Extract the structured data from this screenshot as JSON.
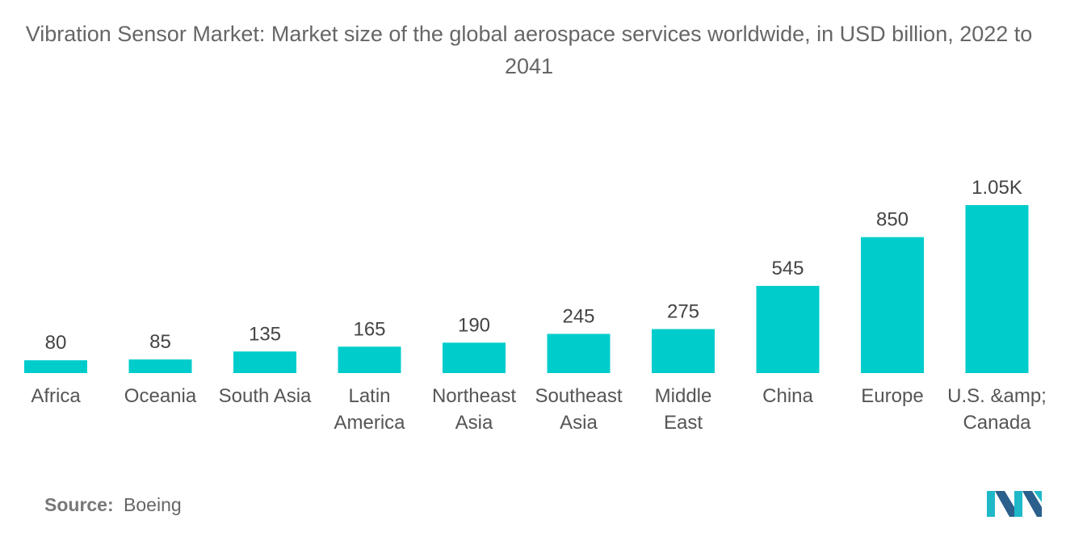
{
  "chart_data": {
    "type": "bar",
    "title": "Vibration Sensor Market: Market size of the global aerospace services worldwide, in USD billion, 2022 to 2041",
    "categories": [
      [
        "Africa"
      ],
      [
        "Oceania"
      ],
      [
        "South Asia"
      ],
      [
        "Latin",
        "America"
      ],
      [
        "Northeast",
        "Asia"
      ],
      [
        "Southeast",
        "Asia"
      ],
      [
        "Middle",
        "East"
      ],
      [
        "China"
      ],
      [
        "Europe"
      ],
      [
        "U.S. &amp;",
        "Canada"
      ]
    ],
    "values": [
      80,
      85,
      135,
      165,
      190,
      245,
      275,
      545,
      850,
      1050
    ],
    "value_labels": [
      "80",
      "85",
      "135",
      "165",
      "190",
      "245",
      "275",
      "545",
      "850",
      "1.05K"
    ],
    "xlabel": "",
    "ylabel": "",
    "ylim": [
      0,
      1050
    ],
    "grid": false,
    "bar_color": "#00CCCC"
  },
  "footer": {
    "source_label": "Source:",
    "source_value": "Boeing"
  },
  "logo": {
    "icon": "mordor-intelligence-logo-icon",
    "colors": [
      "#2B5F8C",
      "#1FB8C9"
    ]
  }
}
